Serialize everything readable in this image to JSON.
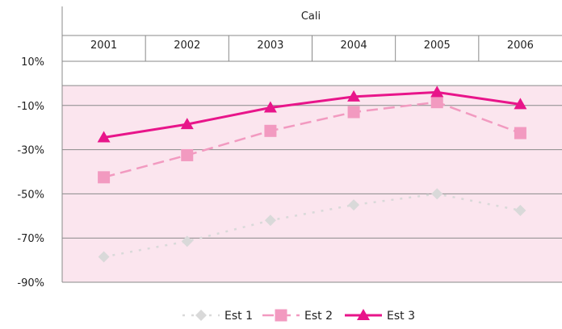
{
  "chart_data": {
    "type": "line",
    "title": "Cali",
    "categories": [
      "2001",
      "2002",
      "2003",
      "2004",
      "2005",
      "2006"
    ],
    "ylim": [
      -90,
      10
    ],
    "yticks": [
      "10%",
      "-10%",
      "-30%",
      "-50%",
      "-70%",
      "-90%"
    ],
    "grid": true,
    "legend_position": "bottom",
    "plot_background": "#fbe5ee",
    "series": [
      {
        "name": "Est 1",
        "values": [
          -78.5,
          -71.5,
          -62,
          -55,
          -50,
          -57.5
        ],
        "color": "#d9d9d9",
        "marker": "diamond",
        "line_style": "dotted"
      },
      {
        "name": "Est 2",
        "values": [
          -42.5,
          -32.5,
          -21.5,
          -13,
          -8.5,
          -22.5
        ],
        "color": "#f29ac0",
        "marker": "square",
        "line_style": "dashed"
      },
      {
        "name": "Est 3",
        "values": [
          -24.5,
          -18.5,
          -11,
          -6,
          -4,
          -9.5
        ],
        "color": "#e8158a",
        "marker": "triangle",
        "line_style": "solid"
      }
    ]
  }
}
